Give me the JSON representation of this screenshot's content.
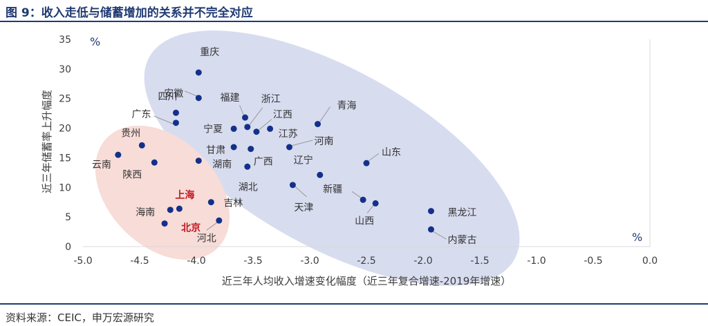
{
  "figure": {
    "title": "图 9：收入走低与储蓄增加的关系并不完全对应",
    "source": "资料来源：CEIC，申万宏源研究"
  },
  "colors": {
    "title": "#1f3a73",
    "dot": "#13318a",
    "axis_text": "#3c3c3c",
    "label_text": "#333333",
    "highlight_label": "#c0171f",
    "group_blue_fill": "#d8dcef",
    "group_red_fill": "#f7dcd8",
    "leader_line": "#999999"
  },
  "chart_data": {
    "type": "scatter",
    "xlabel": "近三年人均收入增速变化幅度（近三年复合增速-2019年增速）",
    "ylabel": "近三年储蓄率上升幅度",
    "x_unit": "%",
    "y_unit": "%",
    "xlim": [
      -5.0,
      0.0
    ],
    "ylim": [
      0,
      35
    ],
    "x_ticks": [
      -5.0,
      -4.5,
      -4.0,
      -3.5,
      -3.0,
      -2.5,
      -2.0,
      -1.5,
      -1.0,
      -0.5,
      0.0
    ],
    "x_tick_labels": [
      "-5.0",
      "-4.5",
      "-4.0",
      "-3.5",
      "-3.0",
      "-2.5",
      "-2.0",
      "-1.5",
      "-1.0",
      "-0.5",
      "0.0"
    ],
    "y_ticks": [
      0,
      5,
      10,
      15,
      20,
      25,
      30,
      35
    ],
    "y_tick_labels": [
      "0",
      "5",
      "10",
      "15",
      "20",
      "25",
      "30",
      "35"
    ],
    "grid": false,
    "points": [
      {
        "name": "重庆",
        "x": -3.98,
        "y": 29.4
      },
      {
        "name": "安徽",
        "x": -3.98,
        "y": 25.1
      },
      {
        "name": "四川",
        "x": -4.18,
        "y": 22.6
      },
      {
        "name": "广东",
        "x": -4.18,
        "y": 20.9
      },
      {
        "name": "福建",
        "x": -3.57,
        "y": 21.8
      },
      {
        "name": "浙江",
        "x": -3.55,
        "y": 20.2
      },
      {
        "name": "宁夏",
        "x": -3.67,
        "y": 19.9
      },
      {
        "name": "江西",
        "x": -3.47,
        "y": 19.4
      },
      {
        "name": "江苏",
        "x": -3.35,
        "y": 19.9
      },
      {
        "name": "青海",
        "x": -2.93,
        "y": 20.7
      },
      {
        "name": "河南",
        "x": -3.18,
        "y": 16.8
      },
      {
        "name": "甘肃",
        "x": -3.67,
        "y": 16.8
      },
      {
        "name": "广西",
        "x": -3.52,
        "y": 16.5
      },
      {
        "name": "湖南",
        "x": -3.98,
        "y": 14.5
      },
      {
        "name": "湖北",
        "x": -3.55,
        "y": 13.5
      },
      {
        "name": "辽宁",
        "x": -2.91,
        "y": 12.1
      },
      {
        "name": "山东",
        "x": -2.5,
        "y": 14.1
      },
      {
        "name": "贵州",
        "x": -4.48,
        "y": 17.1
      },
      {
        "name": "云南",
        "x": -4.69,
        "y": 15.5
      },
      {
        "name": "陕西",
        "x": -4.37,
        "y": 14.2
      },
      {
        "name": "天津",
        "x": -3.15,
        "y": 10.4
      },
      {
        "name": "新疆",
        "x": -2.53,
        "y": 7.9
      },
      {
        "name": "山西",
        "x": -2.42,
        "y": 7.3
      },
      {
        "name": "吉林",
        "x": -3.87,
        "y": 7.5
      },
      {
        "name": "上海",
        "x": -4.15,
        "y": 6.4
      },
      {
        "name": "海南",
        "x": -4.23,
        "y": 6.2
      },
      {
        "name": "北京",
        "x": -4.28,
        "y": 3.9
      },
      {
        "name": "河北",
        "x": -3.8,
        "y": 4.4
      },
      {
        "name": "黑龙江",
        "x": -1.93,
        "y": 6.0
      },
      {
        "name": "内蒙古",
        "x": -1.93,
        "y": 2.9
      }
    ],
    "highlighted": [
      "上海",
      "北京"
    ],
    "groups": [
      "blue-ellipse",
      "red-ellipse"
    ]
  }
}
